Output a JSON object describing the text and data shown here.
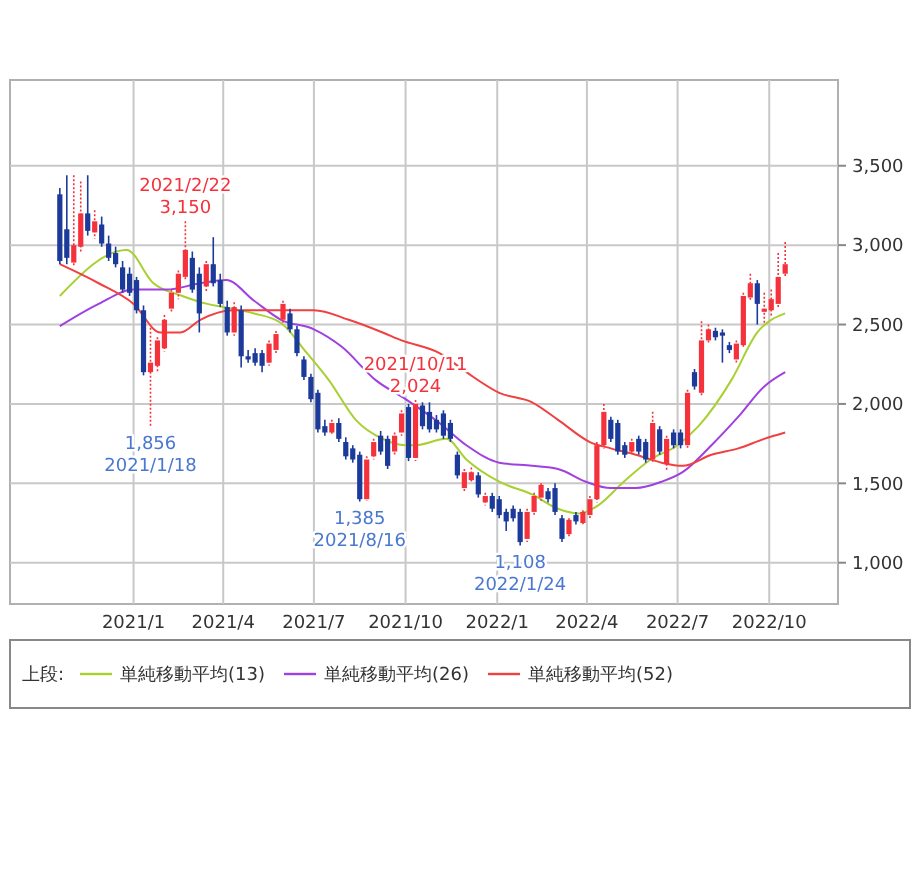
{
  "chart_data": {
    "type": "candlestick",
    "x": [
      "2020-10-19",
      "2020-10-26",
      "2020-11-02",
      "2020-11-09",
      "2020-11-16",
      "2020-11-23",
      "2020-11-30",
      "2020-12-07",
      "2020-12-14",
      "2020-12-21",
      "2020-12-28",
      "2021-01-04",
      "2021-01-11",
      "2021-01-18",
      "2021-01-25",
      "2021-02-01",
      "2021-02-08",
      "2021-02-15",
      "2021-02-22",
      "2021-03-01",
      "2021-03-08",
      "2021-03-15",
      "2021-03-22",
      "2021-03-29",
      "2021-04-05",
      "2021-04-12",
      "2021-04-19",
      "2021-04-26",
      "2021-05-03",
      "2021-05-10",
      "2021-05-17",
      "2021-05-24",
      "2021-05-31",
      "2021-06-07",
      "2021-06-14",
      "2021-06-21",
      "2021-06-28",
      "2021-07-05",
      "2021-07-12",
      "2021-07-19",
      "2021-07-26",
      "2021-08-02",
      "2021-08-09",
      "2021-08-16",
      "2021-08-23",
      "2021-08-30",
      "2021-09-06",
      "2021-09-13",
      "2021-09-20",
      "2021-09-27",
      "2021-10-04",
      "2021-10-11",
      "2021-10-18",
      "2021-10-25",
      "2021-11-01",
      "2021-11-08",
      "2021-11-15",
      "2021-11-22",
      "2021-11-29",
      "2021-12-06",
      "2021-12-13",
      "2021-12-20",
      "2021-12-27",
      "2022-01-03",
      "2022-01-10",
      "2022-01-17",
      "2022-01-24",
      "2022-01-31",
      "2022-02-07",
      "2022-02-14",
      "2022-02-21",
      "2022-02-28",
      "2022-03-07",
      "2022-03-14",
      "2022-03-21",
      "2022-03-28",
      "2022-04-04",
      "2022-04-11",
      "2022-04-18",
      "2022-04-25",
      "2022-05-02",
      "2022-05-09",
      "2022-05-16",
      "2022-05-23",
      "2022-05-30",
      "2022-06-06",
      "2022-06-13",
      "2022-06-20",
      "2022-06-27",
      "2022-07-04",
      "2022-07-11",
      "2022-07-18",
      "2022-07-25",
      "2022-08-01",
      "2022-08-08",
      "2022-08-15",
      "2022-08-22",
      "2022-08-29",
      "2022-09-05",
      "2022-09-12",
      "2022-09-19",
      "2022-09-26",
      "2022-10-03",
      "2022-10-10",
      "2022-10-17"
    ],
    "ohlc": [
      [
        3320,
        3360,
        2880,
        2900
      ],
      [
        3100,
        3440,
        2880,
        2920
      ],
      [
        2890,
        3440,
        2860,
        3000
      ],
      [
        2990,
        3400,
        2960,
        3200
      ],
      [
        3200,
        3440,
        3060,
        3090
      ],
      [
        3080,
        3220,
        3040,
        3150
      ],
      [
        3130,
        3180,
        2990,
        3010
      ],
      [
        3010,
        3060,
        2900,
        2920
      ],
      [
        2950,
        2990,
        2860,
        2880
      ],
      [
        2860,
        2900,
        2700,
        2720
      ],
      [
        2820,
        2860,
        2680,
        2700
      ],
      [
        2780,
        2800,
        2570,
        2590
      ],
      [
        2590,
        2620,
        2180,
        2200
      ],
      [
        2200,
        2480,
        1856,
        2260
      ],
      [
        2240,
        2420,
        2200,
        2400
      ],
      [
        2350,
        2560,
        2330,
        2530
      ],
      [
        2600,
        2720,
        2580,
        2700
      ],
      [
        2700,
        2840,
        2660,
        2820
      ],
      [
        2800,
        3150,
        2780,
        2970
      ],
      [
        2920,
        2960,
        2700,
        2720
      ],
      [
        2820,
        2860,
        2450,
        2570
      ],
      [
        2740,
        2900,
        2700,
        2880
      ],
      [
        2880,
        3050,
        2740,
        2760
      ],
      [
        2780,
        2820,
        2610,
        2630
      ],
      [
        2610,
        2650,
        2430,
        2450
      ],
      [
        2450,
        2640,
        2430,
        2610
      ],
      [
        2590,
        2620,
        2230,
        2300
      ],
      [
        2300,
        2340,
        2260,
        2280
      ],
      [
        2320,
        2350,
        2240,
        2260
      ],
      [
        2320,
        2340,
        2200,
        2240
      ],
      [
        2260,
        2400,
        2240,
        2380
      ],
      [
        2340,
        2460,
        2320,
        2440
      ],
      [
        2530,
        2650,
        2510,
        2630
      ],
      [
        2570,
        2600,
        2450,
        2470
      ],
      [
        2470,
        2490,
        2300,
        2320
      ],
      [
        2280,
        2300,
        2150,
        2170
      ],
      [
        2170,
        2190,
        2010,
        2030
      ],
      [
        2070,
        2090,
        1820,
        1840
      ],
      [
        1860,
        1900,
        1800,
        1820
      ],
      [
        1820,
        1900,
        1800,
        1880
      ],
      [
        1880,
        1910,
        1760,
        1780
      ],
      [
        1760,
        1790,
        1650,
        1670
      ],
      [
        1720,
        1740,
        1630,
        1650
      ],
      [
        1680,
        1700,
        1385,
        1400
      ],
      [
        1400,
        1670,
        1390,
        1650
      ],
      [
        1670,
        1780,
        1650,
        1760
      ],
      [
        1800,
        1830,
        1680,
        1700
      ],
      [
        1780,
        1800,
        1590,
        1610
      ],
      [
        1700,
        1820,
        1680,
        1800
      ],
      [
        1820,
        1960,
        1800,
        1940
      ],
      [
        1980,
        2000,
        1640,
        1660
      ],
      [
        1660,
        2024,
        1640,
        2000
      ],
      [
        1990,
        2010,
        1840,
        1860
      ],
      [
        1950,
        2010,
        1820,
        1840
      ],
      [
        1900,
        1930,
        1820,
        1840
      ],
      [
        1940,
        1960,
        1780,
        1800
      ],
      [
        1880,
        1900,
        1760,
        1780
      ],
      [
        1680,
        1700,
        1530,
        1550
      ],
      [
        1470,
        1590,
        1450,
        1570
      ],
      [
        1520,
        1600,
        1500,
        1570
      ],
      [
        1550,
        1570,
        1410,
        1430
      ],
      [
        1380,
        1440,
        1360,
        1420
      ],
      [
        1420,
        1440,
        1320,
        1340
      ],
      [
        1400,
        1420,
        1280,
        1300
      ],
      [
        1320,
        1340,
        1200,
        1260
      ],
      [
        1340,
        1360,
        1260,
        1280
      ],
      [
        1320,
        1340,
        1108,
        1130
      ],
      [
        1150,
        1340,
        1130,
        1320
      ],
      [
        1320,
        1440,
        1300,
        1420
      ],
      [
        1410,
        1500,
        1390,
        1490
      ],
      [
        1450,
        1470,
        1380,
        1400
      ],
      [
        1470,
        1500,
        1300,
        1320
      ],
      [
        1280,
        1300,
        1130,
        1150
      ],
      [
        1180,
        1280,
        1160,
        1270
      ],
      [
        1300,
        1320,
        1240,
        1260
      ],
      [
        1250,
        1330,
        1230,
        1320
      ],
      [
        1300,
        1420,
        1280,
        1400
      ],
      [
        1400,
        1760,
        1380,
        1740
      ],
      [
        1740,
        2000,
        1720,
        1950
      ],
      [
        1900,
        1920,
        1760,
        1780
      ],
      [
        1880,
        1900,
        1680,
        1700
      ],
      [
        1740,
        1760,
        1660,
        1680
      ],
      [
        1700,
        1780,
        1680,
        1760
      ],
      [
        1780,
        1800,
        1680,
        1700
      ],
      [
        1760,
        1780,
        1630,
        1650
      ],
      [
        1650,
        1950,
        1630,
        1880
      ],
      [
        1840,
        1860,
        1680,
        1700
      ],
      [
        1620,
        1800,
        1580,
        1780
      ],
      [
        1820,
        1840,
        1720,
        1740
      ],
      [
        1820,
        1840,
        1720,
        1740
      ],
      [
        1740,
        2090,
        1720,
        2070
      ],
      [
        2200,
        2220,
        2090,
        2110
      ],
      [
        2070,
        2520,
        2050,
        2400
      ],
      [
        2400,
        2500,
        2380,
        2470
      ],
      [
        2460,
        2480,
        2400,
        2420
      ],
      [
        2450,
        2470,
        2260,
        2430
      ],
      [
        2370,
        2390,
        2320,
        2340
      ],
      [
        2280,
        2400,
        2260,
        2380
      ],
      [
        2370,
        2700,
        2350,
        2680
      ],
      [
        2670,
        2820,
        2650,
        2760
      ],
      [
        2760,
        2780,
        2500,
        2630
      ],
      [
        2580,
        2700,
        2500,
        2600
      ],
      [
        2590,
        2720,
        2550,
        2660
      ],
      [
        2630,
        2950,
        2600,
        2800
      ],
      [
        2820,
        3020,
        2800,
        2880
      ]
    ],
    "colors": [
      "#1b3a9a",
      "#1b3a9a",
      "#f5323c",
      "#f5323c",
      "#1b3a9a",
      "#f5323c",
      "#1b3a9a",
      "#1b3a9a",
      "#1b3a9a",
      "#1b3a9a",
      "#1b3a9a",
      "#1b3a9a",
      "#1b3a9a",
      "#f5323c",
      "#f5323c",
      "#f5323c",
      "#f5323c",
      "#f5323c",
      "#f5323c",
      "#1b3a9a",
      "#1b3a9a",
      "#f5323c",
      "#1b3a9a",
      "#1b3a9a",
      "#1b3a9a",
      "#f5323c",
      "#1b3a9a",
      "#1b3a9a",
      "#1b3a9a",
      "#1b3a9a",
      "#f5323c",
      "#f5323c",
      "#f5323c",
      "#1b3a9a",
      "#1b3a9a",
      "#1b3a9a",
      "#1b3a9a",
      "#1b3a9a",
      "#1b3a9a",
      "#f5323c",
      "#1b3a9a",
      "#1b3a9a",
      "#1b3a9a",
      "#1b3a9a",
      "#f5323c",
      "#f5323c",
      "#1b3a9a",
      "#1b3a9a",
      "#f5323c",
      "#f5323c",
      "#1b3a9a",
      "#f5323c",
      "#1b3a9a",
      "#1b3a9a",
      "#1b3a9a",
      "#1b3a9a",
      "#1b3a9a",
      "#1b3a9a",
      "#f5323c",
      "#f5323c",
      "#1b3a9a",
      "#f5323c",
      "#1b3a9a",
      "#1b3a9a",
      "#1b3a9a",
      "#1b3a9a",
      "#1b3a9a",
      "#f5323c",
      "#f5323c",
      "#f5323c",
      "#1b3a9a",
      "#1b3a9a",
      "#1b3a9a",
      "#f5323c",
      "#1b3a9a",
      "#f5323c",
      "#f5323c",
      "#f5323c",
      "#f5323c",
      "#1b3a9a",
      "#1b3a9a",
      "#1b3a9a",
      "#f5323c",
      "#1b3a9a",
      "#1b3a9a",
      "#f5323c",
      "#1b3a9a",
      "#f5323c",
      "#1b3a9a",
      "#1b3a9a",
      "#f5323c",
      "#1b3a9a",
      "#f5323c",
      "#f5323c",
      "#1b3a9a",
      "#1b3a9a",
      "#1b3a9a",
      "#f5323c",
      "#f5323c",
      "#f5323c",
      "#1b3a9a",
      "#f5323c",
      "#f5323c",
      "#f5323c",
      "#f5323c"
    ],
    "series": [
      {
        "type": "line",
        "name": "単純移動平均(13)",
        "color": "#a8d030",
        "x": [
          "2020-10-19",
          "2020-12-25",
          "2021-01-21",
          "2021-02-19",
          "2021-03-16",
          "2021-04-01",
          "2021-05-02",
          "2021-05-29",
          "2021-06-24",
          "2021-07-16",
          "2021-08-12",
          "2021-09-08",
          "2021-10-01",
          "2021-10-11",
          "2021-11-11",
          "2021-12-01",
          "2022-01-03",
          "2022-02-05",
          "2022-03-03",
          "2022-03-24",
          "2022-04-12",
          "2022-05-08",
          "2022-06-04",
          "2022-07-01",
          "2022-07-22",
          "2022-08-24",
          "2022-09-19",
          "2022-10-17"
        ],
        "values": [
          2680,
          2970,
          2760,
          2680,
          2630,
          2610,
          2570,
          2510,
          2320,
          2150,
          1900,
          1780,
          1740,
          1740,
          1780,
          1650,
          1510,
          1430,
          1340,
          1310,
          1360,
          1510,
          1650,
          1740,
          1860,
          2150,
          2450,
          2570
        ]
      },
      {
        "type": "line",
        "name": "単純移動平均(26)",
        "color": "#a040e0",
        "x": [
          "2020-10-19",
          "2020-11-27",
          "2021-01-01",
          "2021-02-03",
          "2021-03-09",
          "2021-04-04",
          "2021-05-02",
          "2021-05-29",
          "2021-07-01",
          "2021-07-29",
          "2021-09-01",
          "2021-10-01",
          "2021-11-04",
          "2021-12-01",
          "2022-01-03",
          "2022-02-05",
          "2022-03-03",
          "2022-03-31",
          "2022-04-25",
          "2022-05-20",
          "2022-06-15",
          "2022-07-06",
          "2022-08-04",
          "2022-08-31",
          "2022-09-26",
          "2022-10-17"
        ],
        "values": [
          2490,
          2630,
          2720,
          2720,
          2760,
          2780,
          2650,
          2530,
          2470,
          2360,
          2150,
          2030,
          1880,
          1740,
          1630,
          1610,
          1590,
          1510,
          1470,
          1470,
          1510,
          1570,
          1740,
          1920,
          2110,
          2200
        ]
      },
      {
        "type": "line",
        "name": "単純移動平均(52)",
        "color": "#f04040",
        "x": [
          "2020-10-19",
          "2020-11-27",
          "2021-01-01",
          "2021-01-28",
          "2021-02-17",
          "2021-03-09",
          "2021-04-11",
          "2021-05-15",
          "2021-07-01",
          "2021-08-05",
          "2021-09-08",
          "2021-09-27",
          "2021-11-04",
          "2021-12-01",
          "2022-01-03",
          "2022-02-05",
          "2022-03-03",
          "2022-04-04",
          "2022-04-25",
          "2022-05-20",
          "2022-06-15",
          "2022-07-06",
          "2022-08-04",
          "2022-08-31",
          "2022-09-26",
          "2022-10-17"
        ],
        "values": [
          2880,
          2760,
          2630,
          2450,
          2450,
          2530,
          2590,
          2590,
          2590,
          2530,
          2450,
          2400,
          2320,
          2200,
          2070,
          2010,
          1900,
          1760,
          1720,
          1680,
          1630,
          1610,
          1680,
          1720,
          1780,
          1820
        ]
      }
    ],
    "xlim": [
      "2020-08-30",
      "2022-12-09"
    ],
    "xticks": [
      {
        "value": "2021-01-01",
        "label": "2021/1"
      },
      {
        "value": "2021-04-01",
        "label": "2021/4"
      },
      {
        "value": "2021-07-01",
        "label": "2021/7"
      },
      {
        "value": "2021-10-01",
        "label": "2021/10"
      },
      {
        "value": "2022-01-01",
        "label": "2022/1"
      },
      {
        "value": "2022-04-01",
        "label": "2022/4"
      },
      {
        "value": "2022-07-01",
        "label": "2022/7"
      },
      {
        "value": "2022-10-01",
        "label": "2022/10"
      }
    ],
    "ylim": [
      740,
      4040
    ],
    "yticks": [
      {
        "value": 1000,
        "label": "1,000"
      },
      {
        "value": 1500,
        "label": "1,500"
      },
      {
        "value": 2000,
        "label": "2,000"
      },
      {
        "value": 2500,
        "label": "2,500"
      },
      {
        "value": 3000,
        "label": "3,000"
      },
      {
        "value": 3500,
        "label": "3,500"
      }
    ],
    "grid": true,
    "legend": "bottom",
    "legend_title": "上段:",
    "annotations": [
      {
        "text": "2021/2/22\n3,150",
        "x": "2021-02-22",
        "y": 3150
      },
      {
        "text": "1,856\n2021/1/18",
        "x": "2021-01-18",
        "y": 1856
      },
      {
        "text": "2021/10/11\n2,024",
        "x": "2021-10-11",
        "y": 2024
      },
      {
        "text": "1,385\n2021/8/16",
        "x": "2021-08-16",
        "y": 1385
      },
      {
        "text": "1,108\n2022/1/24",
        "x": "2022-01-24",
        "y": 1108
      }
    ]
  }
}
